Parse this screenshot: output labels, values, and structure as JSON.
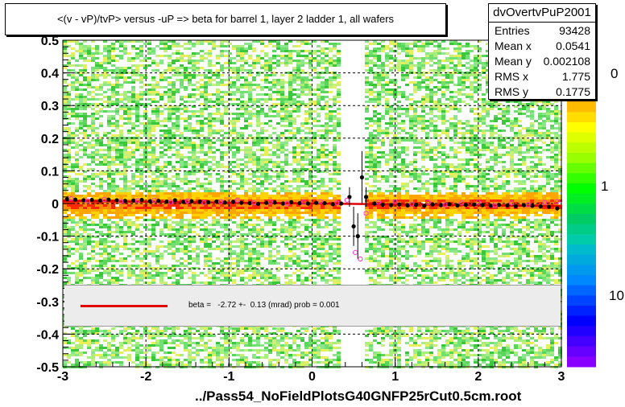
{
  "title": "<(v - vP)/tvP> versus  -uP => beta for barrel 1, layer 2 ladder 1, all wafers",
  "footer": "../Pass54_NoFieldPlotsG40GNFP25rCut0.5cm.root",
  "stats": {
    "name": "dvOvertvPuP2001",
    "rows": [
      {
        "key": "Entries",
        "value": "93428"
      },
      {
        "key": "Mean x",
        "value": "0.0541"
      },
      {
        "key": "Mean y",
        "value": "0.002108"
      },
      {
        "key": "RMS x",
        "value": "1.775"
      },
      {
        "key": "RMS y",
        "value": "0.1775"
      }
    ]
  },
  "fit": {
    "text": "beta =   -2.72 +-  0.13 (mrad) prob = 0.001",
    "color": "#e00000"
  },
  "palette_labels": [
    "0",
    "1",
    "10"
  ],
  "chart_data": {
    "type": "heatmap",
    "title": "<(v - vP)/tvP> versus  -uP => beta for barrel 1, layer 2 ladder 1, all wafers",
    "xlim": [
      -3,
      3
    ],
    "ylim": [
      -0.5,
      0.5
    ],
    "x_ticks": [
      "-3",
      "-2",
      "-1",
      "0",
      "1",
      "2",
      "3"
    ],
    "y_ticks": [
      "-0.5",
      "-0.4",
      "-0.3",
      "-0.2",
      "-0.1",
      "0",
      "0.1",
      "0.2",
      "0.3",
      "0.4",
      "0.5"
    ],
    "grid": true,
    "gap_x": [
      0.3,
      0.6
    ],
    "fit_line": {
      "x": [
        -3,
        3
      ],
      "y": [
        0.008,
        -0.008
      ]
    },
    "series": [
      {
        "name": "profile mean",
        "x": [
          -2.95,
          -2.85,
          -2.75,
          -2.65,
          -2.55,
          -2.45,
          -2.35,
          -2.25,
          -2.15,
          -2.05,
          -1.95,
          -1.85,
          -1.75,
          -1.65,
          -1.55,
          -1.45,
          -1.35,
          -1.25,
          -1.15,
          -1.05,
          -0.95,
          -0.85,
          -0.75,
          -0.65,
          -0.55,
          -0.45,
          -0.35,
          -0.25,
          -0.15,
          -0.05,
          0.05,
          0.15,
          0.25,
          0.35,
          0.45,
          0.5,
          0.55,
          0.6,
          0.65,
          0.75,
          0.85,
          0.95,
          1.05,
          1.15,
          1.25,
          1.35,
          1.45,
          1.55,
          1.65,
          1.75,
          1.85,
          1.95,
          2.05,
          2.15,
          2.25,
          2.35,
          2.45,
          2.55,
          2.65,
          2.75,
          2.85,
          2.95
        ],
        "y": [
          0.013,
          0.012,
          0.01,
          0.011,
          0.009,
          0.012,
          0.01,
          0.008,
          0.009,
          0.011,
          0.007,
          0.008,
          0.006,
          0.01,
          0.005,
          0.007,
          0.006,
          0.004,
          0.006,
          0.003,
          0.005,
          0.002,
          0.001,
          -0.001,
          0.002,
          0.003,
          0.0,
          0.004,
          0.001,
          0.0,
          0.002,
          0.001,
          -0.002,
          0.0,
          0.02,
          -0.07,
          -0.1,
          0.08,
          0.02,
          0.0,
          -0.004,
          -0.005,
          -0.003,
          -0.006,
          -0.004,
          -0.007,
          -0.003,
          -0.005,
          -0.002,
          -0.006,
          -0.004,
          -0.003,
          -0.005,
          -0.007,
          -0.004,
          -0.006,
          -0.008,
          -0.005,
          -0.007,
          -0.009,
          -0.01,
          -0.015
        ],
        "error_y": [
          0.004,
          0.004,
          0.004,
          0.004,
          0.004,
          0.004,
          0.004,
          0.004,
          0.004,
          0.004,
          0.004,
          0.004,
          0.004,
          0.004,
          0.004,
          0.004,
          0.004,
          0.004,
          0.004,
          0.004,
          0.004,
          0.004,
          0.004,
          0.004,
          0.004,
          0.004,
          0.004,
          0.004,
          0.004,
          0.004,
          0.004,
          0.004,
          0.004,
          0.004,
          0.03,
          0.06,
          0.07,
          0.08,
          0.03,
          0.004,
          0.004,
          0.004,
          0.004,
          0.004,
          0.004,
          0.004,
          0.004,
          0.004,
          0.004,
          0.004,
          0.004,
          0.004,
          0.004,
          0.004,
          0.004,
          0.004,
          0.004,
          0.004,
          0.004,
          0.004,
          0.004,
          0.006
        ],
        "color": "#000000"
      },
      {
        "name": "profile alt",
        "x": [
          -2.9,
          -2.7,
          -2.5,
          -2.3,
          -2.1,
          -1.9,
          -1.7,
          -1.5,
          -1.3,
          -1.1,
          -0.9,
          -0.7,
          -0.5,
          -0.3,
          -0.1,
          0.1,
          0.3,
          0.42,
          0.52,
          0.58,
          0.65,
          0.8,
          1.0,
          1.2,
          1.4,
          1.6,
          1.8,
          2.0,
          2.2,
          2.4,
          2.6,
          2.8,
          2.95
        ],
        "y": [
          0.015,
          0.008,
          0.012,
          0.006,
          0.009,
          0.01,
          0.004,
          0.008,
          0.003,
          0.006,
          0.01,
          0.002,
          0.005,
          0.0,
          0.004,
          0.006,
          0.002,
          0.01,
          -0.15,
          -0.17,
          -0.03,
          0.004,
          0.006,
          -0.002,
          0.003,
          -0.004,
          0.002,
          0.004,
          -0.006,
          0.002,
          -0.004,
          0.003,
          0.006
        ],
        "color": "#ff33cc"
      }
    ]
  }
}
